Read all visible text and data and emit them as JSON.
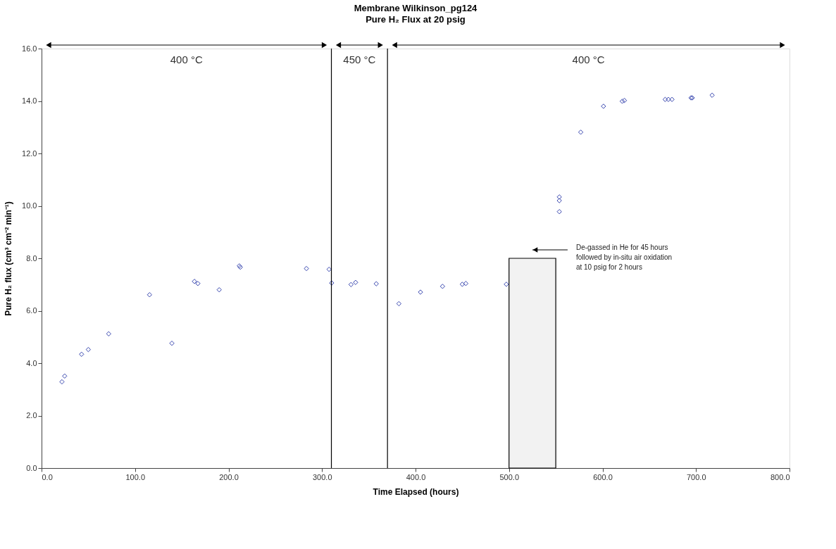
{
  "chart_data": {
    "type": "scatter",
    "title": "Membrane Wilkinson_pg124",
    "subtitle": "Pure H₂ Flux at 20 psig",
    "xlabel": "Time Elapsed (hours)",
    "ylabel": "Pure H₂ flux (cm³ cm⁻² min⁻¹)",
    "xlim": [
      0,
      800
    ],
    "ylim": [
      0,
      16
    ],
    "xticks": [
      {
        "value": 0,
        "label": "0.0"
      },
      {
        "value": 100,
        "label": "100.0"
      },
      {
        "value": 200,
        "label": "200.0"
      },
      {
        "value": 300,
        "label": "300.0"
      },
      {
        "value": 400,
        "label": "400.0"
      },
      {
        "value": 500,
        "label": "500.0"
      },
      {
        "value": 600,
        "label": "600.0"
      },
      {
        "value": 700,
        "label": "700.0"
      },
      {
        "value": 800,
        "label": "800.0"
      }
    ],
    "yticks": [
      {
        "value": 0,
        "label": "0.0"
      },
      {
        "value": 2,
        "label": "2.0"
      },
      {
        "value": 4,
        "label": "4.0"
      },
      {
        "value": 6,
        "label": "6.0"
      },
      {
        "value": 8,
        "label": "8.0"
      },
      {
        "value": 10,
        "label": "10.0"
      },
      {
        "value": 12,
        "label": "12.0"
      },
      {
        "value": 14,
        "label": "14.0"
      },
      {
        "value": 16,
        "label": "16.0"
      }
    ],
    "grid": false,
    "marker": "diamond",
    "series": [
      {
        "color": "#3a48b0",
        "x": [
          21.8,
          24.7,
          42.8,
          50.0,
          71.8,
          115.5,
          139.4,
          163.5,
          167.2,
          190.0,
          211.5,
          212.6,
          283.3,
          307.5,
          310.3,
          331.0,
          335.9,
          358.0,
          382.2,
          405.3,
          428.9,
          450.0,
          453.8,
          497.1,
          553.8,
          553.8,
          553.8,
          576.7,
          601.0,
          621.1,
          623.4,
          667.0,
          670.4,
          674.3,
          694.7,
          696.0,
          717.2
        ],
        "values": [
          3.29,
          3.51,
          4.34,
          4.52,
          5.12,
          6.61,
          4.76,
          7.12,
          7.04,
          6.8,
          7.71,
          7.66,
          7.61,
          7.58,
          7.06,
          7.0,
          7.08,
          7.03,
          6.27,
          6.71,
          6.93,
          7.01,
          7.04,
          7.01,
          10.34,
          10.2,
          9.78,
          12.81,
          13.8,
          13.99,
          14.02,
          14.06,
          14.06,
          14.06,
          14.12,
          14.12,
          14.22
        ]
      }
    ],
    "ref_lines": [
      {
        "axis": "x",
        "value": 310,
        "color": "#000000"
      },
      {
        "axis": "x",
        "value": 370,
        "color": "#000000"
      }
    ],
    "bands": [
      {
        "axis": "x",
        "from": 500,
        "to": 550,
        "color": "#f2f2f2",
        "label": "De-gassed in He for 45 hours followed by in-situ air oxidation at 10 psig for 2 hours"
      }
    ],
    "annotations": [
      "400 °C",
      "450 °C",
      "400 °C"
    ]
  }
}
